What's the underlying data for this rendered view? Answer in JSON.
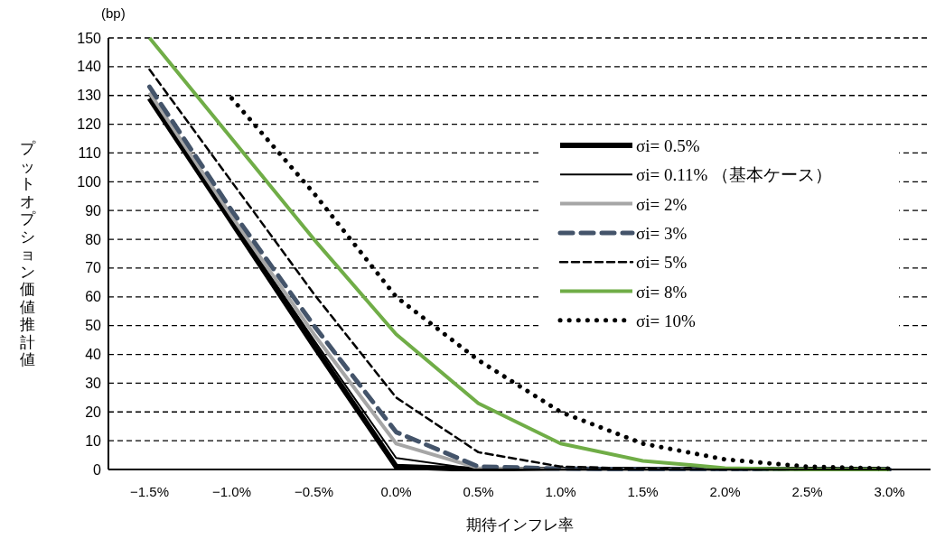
{
  "chart_data": {
    "type": "line",
    "ylabel": "プットオプション価値推計値",
    "xlabel": "期待インフレ率",
    "annotations": [
      "(bp)"
    ],
    "categories": [
      "−1.5%",
      "−1.0%",
      "−0.5%",
      "0.0%",
      "0.5%",
      "1.0%",
      "1.5%",
      "2.0%",
      "2.5%",
      "3.0%"
    ],
    "ylim": [
      0,
      150
    ],
    "yticks": [
      0,
      10,
      20,
      30,
      40,
      50,
      60,
      70,
      80,
      90,
      100,
      110,
      120,
      130,
      140,
      150
    ],
    "grid": "y",
    "legend": "top right",
    "series": [
      {
        "name": "σi= 0.5%",
        "color": "#000000",
        "line_style": "solid",
        "values": [
          129,
          86,
          43,
          1,
          0,
          0,
          0,
          0,
          0,
          0
        ]
      },
      {
        "name": "σi= 0.11% （基本ケース）",
        "color": "#000000",
        "line_style": "solid",
        "values": [
          130,
          87,
          45,
          4,
          0,
          0,
          0,
          0,
          0,
          0
        ]
      },
      {
        "name": "σi= 2%",
        "color": "#a6a6a6",
        "line_style": "solid",
        "values": [
          131,
          88,
          47,
          9,
          0.5,
          0,
          0,
          0,
          0,
          0
        ]
      },
      {
        "name": "σi= 3%",
        "color": "#44546a",
        "line_style": "dashed",
        "values": [
          133,
          90,
          50,
          13,
          1,
          0.3,
          0,
          0,
          0,
          0
        ]
      },
      {
        "name": "σi= 5%",
        "color": "#000000",
        "line_style": "dashed",
        "values": [
          139,
          100,
          61,
          25,
          6,
          1,
          0.3,
          0,
          0,
          0
        ]
      },
      {
        "name": "σi= 8%",
        "color": "#70ad47",
        "line_style": "solid",
        "values": [
          150,
          115,
          80,
          47,
          23,
          9,
          3,
          0.5,
          0,
          0
        ]
      },
      {
        "name": "σi= 10%",
        "color": "#000000",
        "line_style": "dotted",
        "values": [
          null,
          129,
          96,
          60,
          38,
          20,
          9,
          3.5,
          1,
          0.3
        ]
      }
    ]
  }
}
